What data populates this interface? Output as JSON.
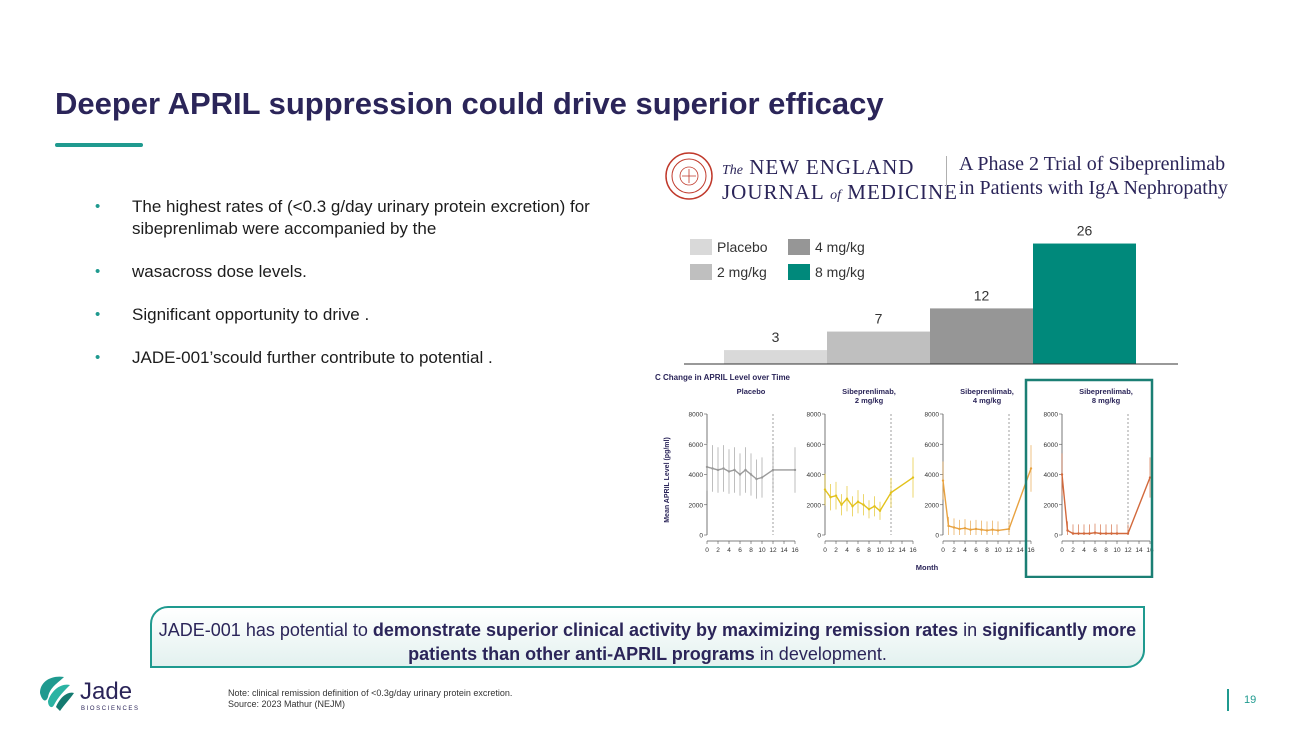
{
  "title": "Deeper APRIL suppression could drive superior efficacy",
  "bullets": [
    "The highest rates of (<0.3 g/day urinary protein excretion) for sibeprenlimab were accompanied by the",
    "wasacross dose levels.",
    "Significant opportunity to drive .",
    "JADE-001’scould further contribute to potential ."
  ],
  "nejm": {
    "line1_prefix": "The",
    "line1_main": "NEW ENGLAND",
    "line2_a": "JOURNAL",
    "line2_of": "of",
    "line2_b": "MEDICINE",
    "article_line1": "A Phase 2 Trial of Sibeprenlimab",
    "article_line2": "in Patients with IgA Nephropathy"
  },
  "chart_data": [
    {
      "type": "bar",
      "categories": [
        "Placebo",
        "2 mg/kg",
        "4 mg/kg",
        "8 mg/kg"
      ],
      "values": [
        3,
        7,
        12,
        26
      ],
      "legend": [
        "Placebo",
        "4 mg/kg",
        "2 mg/kg",
        "8 mg/kg"
      ],
      "legend_placement": "top-left",
      "colors": [
        "#d9d9d9",
        "#bfbfbf",
        "#969696",
        "#00897b"
      ],
      "ylim": [
        0,
        30
      ],
      "title": "",
      "xlabel": "",
      "ylabel": ""
    },
    {
      "type": "line",
      "title": "C Change in APRIL Level over Time",
      "ylabel": "Mean APRIL Level (pg/ml)",
      "xlabel": "Month",
      "x_ticks": [
        "0",
        "2",
        "4",
        "6",
        "8",
        "10",
        "12",
        "14",
        "16"
      ],
      "y_ticks": [
        "0",
        "2000",
        "4000",
        "6000",
        "8000"
      ],
      "ylim": [
        0,
        8000
      ],
      "highlighted_panel": "Sibeprenlimab, 8 mg/kg",
      "panels": [
        {
          "name": "Placebo",
          "color": "#9a9a9a",
          "x": [
            0,
            1,
            2,
            3,
            4,
            5,
            6,
            7,
            8,
            9,
            10,
            12,
            16
          ],
          "y": [
            4500,
            4400,
            4300,
            4400,
            4200,
            4300,
            4000,
            4300,
            4000,
            3700,
            3800,
            4300,
            4300
          ]
        },
        {
          "name": "Sibeprenlimab, 2 mg/kg",
          "color": "#e3c21b",
          "x": [
            0,
            1,
            2,
            3,
            4,
            5,
            6,
            7,
            8,
            9,
            10,
            12,
            16
          ],
          "y": [
            3000,
            2500,
            2600,
            2000,
            2400,
            1900,
            2200,
            2000,
            1700,
            1900,
            1600,
            2800,
            3800
          ]
        },
        {
          "name": "Sibeprenlimab, 4 mg/kg",
          "color": "#e8a240",
          "x": [
            0,
            1,
            2,
            3,
            4,
            5,
            6,
            7,
            8,
            9,
            10,
            12,
            16
          ],
          "y": [
            3600,
            600,
            500,
            400,
            450,
            350,
            400,
            350,
            300,
            350,
            300,
            400,
            4400
          ]
        },
        {
          "name": "Sibeprenlimab, 8 mg/kg",
          "color": "#d2693c",
          "x": [
            0,
            1,
            2,
            3,
            4,
            5,
            6,
            7,
            8,
            9,
            10,
            12,
            16
          ],
          "y": [
            4000,
            300,
            100,
            100,
            100,
            100,
            150,
            100,
            100,
            100,
            100,
            100,
            3800
          ]
        }
      ]
    }
  ],
  "callout": {
    "p1": "JADE-001 has potential to ",
    "b1": "demonstrate superior clinical activity by maximizing remission rates",
    "p2": " in ",
    "b2": "significantly more patients than other anti-APRIL programs",
    "p3": " in development."
  },
  "logo": {
    "name": "Jade",
    "sub": "BIOSCIENCES"
  },
  "footnote": {
    "note": "Note: clinical remission definition of <0.3g/day urinary protein excretion.",
    "source": "Source: 2023 Mathur (NEJM)"
  },
  "page_number": "19",
  "colors": {
    "navy": "#2b2559",
    "teal": "#1f9a8f",
    "bar_teal": "#00897b"
  }
}
